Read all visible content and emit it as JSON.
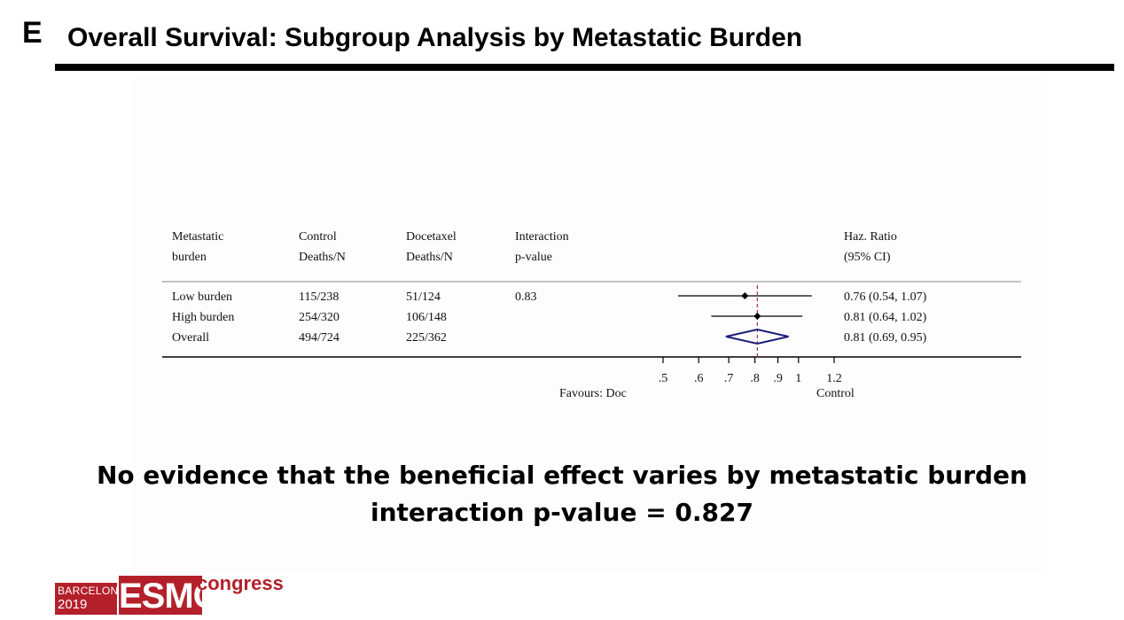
{
  "panel_letter": "E",
  "title": "Overall Survival: Subgroup Analysis by Metastatic Burden",
  "conclusion": {
    "line1": "No evidence that the beneficial effect varies by metastatic burden",
    "line2": "interaction p-value = 0.827"
  },
  "logo": {
    "city": "BARCELONA",
    "year": "2019",
    "brand": "ESMO",
    "word": "congress",
    "color": "#b3202a"
  },
  "chart_data": {
    "type": "forest",
    "headers": [
      {
        "line1": "Metastatic",
        "line2": "burden"
      },
      {
        "line1": "Control",
        "line2": "Deaths/N"
      },
      {
        "line1": "Docetaxel",
        "line2": "Deaths/N"
      },
      {
        "line1": "Interaction",
        "line2": "p-value"
      },
      {
        "line1": "Haz. Ratio",
        "line2": "(95% CI)"
      }
    ],
    "rows": [
      {
        "label": "Low burden",
        "control": "115/238",
        "docetaxel": "51/124",
        "p": "0.83",
        "hr": 0.76,
        "lo": 0.54,
        "hi": 1.07,
        "hr_text": "0.76 (0.54, 1.07)",
        "kind": "point"
      },
      {
        "label": "High burden",
        "control": "254/320",
        "docetaxel": "106/148",
        "p": "",
        "hr": 0.81,
        "lo": 0.64,
        "hi": 1.02,
        "hr_text": "0.81 (0.64, 1.02)",
        "kind": "point"
      },
      {
        "label": "Overall",
        "control": "494/724",
        "docetaxel": "225/362",
        "p": "",
        "hr": 0.81,
        "lo": 0.69,
        "hi": 0.95,
        "hr_text": "0.81 (0.69, 0.95)",
        "kind": "diamond"
      }
    ],
    "x_scale": "log",
    "x_ticks": [
      {
        "v": 0.5,
        "label": ".5"
      },
      {
        "v": 0.6,
        "label": ".6"
      },
      {
        "v": 0.7,
        "label": ".7"
      },
      {
        "v": 0.8,
        "label": ".8"
      },
      {
        "v": 0.9,
        "label": ".9"
      },
      {
        "v": 1.0,
        "label": "1"
      },
      {
        "v": 1.2,
        "label": "1.2"
      }
    ],
    "reference_hr": 0.81,
    "favours_left": "Favours: Doc",
    "favours_right": "Control",
    "colors": {
      "diamond": "#1c1c7a",
      "reference": "#a0304a",
      "line": "#000000"
    }
  }
}
